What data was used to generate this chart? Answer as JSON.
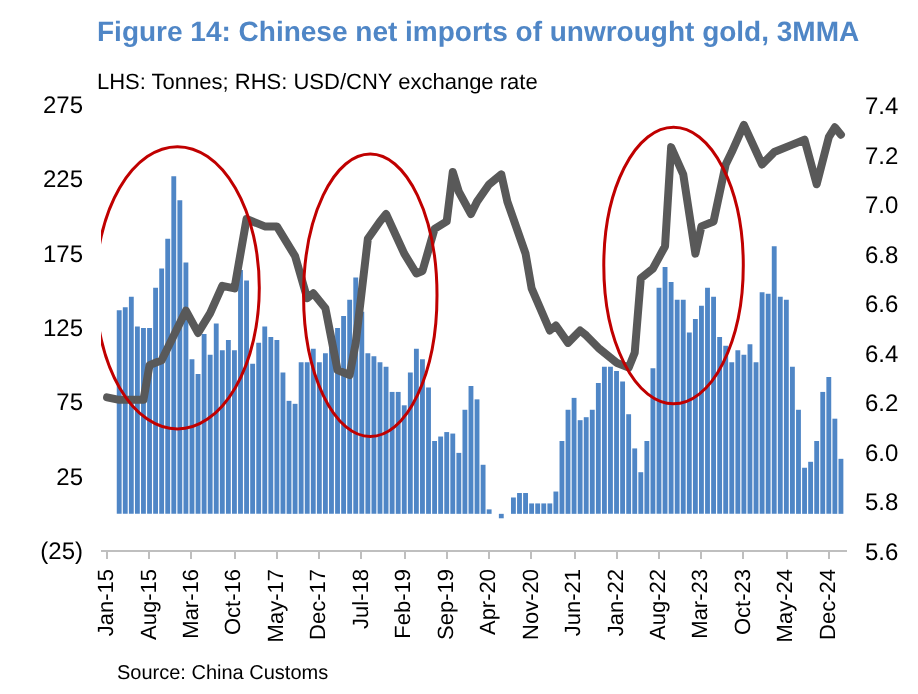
{
  "chart_data": {
    "type": "bar",
    "title": "Figure 14: Chinese net imports of unwrought gold, 3MMA",
    "subtitle": "LHS: Tonnes; RHS: USD/CNY exchange rate",
    "annotations": [
      "Source: China Customs"
    ],
    "x": [
      "2015-03",
      "2015-04",
      "2015-05",
      "2015-06",
      "2015-07",
      "2015-08",
      "2015-09",
      "2015-10",
      "2015-11",
      "2015-12",
      "2016-01",
      "2016-02",
      "2016-03",
      "2016-04",
      "2016-05",
      "2016-06",
      "2016-07",
      "2016-08",
      "2016-09",
      "2016-10",
      "2016-11",
      "2016-12",
      "2017-01",
      "2017-02",
      "2017-03",
      "2017-04",
      "2017-05",
      "2017-06",
      "2017-07",
      "2017-08",
      "2017-09",
      "2017-10",
      "2017-11",
      "2017-12",
      "2018-01",
      "2018-02",
      "2018-03",
      "2018-04",
      "2018-05",
      "2018-06",
      "2018-07",
      "2018-08",
      "2018-09",
      "2018-10",
      "2018-11",
      "2018-12",
      "2019-01",
      "2019-02",
      "2019-03",
      "2019-04",
      "2019-05",
      "2019-06",
      "2019-07",
      "2019-08",
      "2019-09",
      "2019-10",
      "2019-11",
      "2019-12",
      "2020-01",
      "2020-02",
      "2020-03",
      "2020-04",
      "2020-05",
      "2020-06",
      "2020-07",
      "2020-08",
      "2020-09",
      "2020-10",
      "2020-11",
      "2020-12",
      "2021-01",
      "2021-02",
      "2021-03",
      "2021-04",
      "2021-05",
      "2021-06",
      "2021-07",
      "2021-08",
      "2021-09",
      "2021-10",
      "2021-11",
      "2021-12",
      "2022-01",
      "2022-02",
      "2022-03",
      "2022-04",
      "2022-05",
      "2022-06",
      "2022-07",
      "2022-08",
      "2022-09",
      "2022-10",
      "2022-11",
      "2022-12",
      "2023-01",
      "2023-02",
      "2023-03",
      "2023-04",
      "2023-05",
      "2023-06",
      "2023-07",
      "2023-08",
      "2023-09",
      "2023-10",
      "2023-11",
      "2023-12",
      "2024-01",
      "2024-02",
      "2024-03",
      "2024-04",
      "2024-05",
      "2024-06",
      "2024-07",
      "2024-08",
      "2024-09",
      "2024-10",
      "2024-11",
      "2024-12",
      "2025-01",
      "2025-02"
    ],
    "series": [
      {
        "color": "#4f86c6",
        "values": [
          137,
          139,
          146,
          126,
          125,
          125,
          152,
          165,
          185,
          227,
          211,
          169,
          104,
          94,
          121,
          107,
          128,
          110,
          117,
          110,
          164,
          157,
          101,
          115,
          126,
          119,
          117,
          95,
          76,
          74,
          102,
          102,
          111,
          102,
          108,
          117,
          125,
          133,
          144,
          159,
          136,
          108,
          106,
          102,
          99,
          82,
          82,
          73,
          95,
          111,
          104,
          85,
          49,
          52,
          55,
          54,
          41,
          70,
          86,
          77,
          33,
          3,
          0,
          -3,
          0,
          11,
          14,
          14,
          7,
          7,
          7,
          7,
          15,
          49,
          70,
          78,
          63,
          65,
          70,
          88,
          99,
          99,
          96,
          89,
          67,
          44,
          28,
          49,
          98,
          152,
          166,
          156,
          144,
          144,
          122,
          131,
          140,
          152,
          146,
          119,
          113,
          102,
          110,
          107,
          114,
          102,
          149,
          148,
          180,
          146,
          144,
          99,
          70,
          31,
          35,
          49,
          82,
          92,
          64,
          37
        ]
      },
      {
        "type": "line",
        "axis": "y2",
        "color": "#595959",
        "x": [
          "2015-01",
          "2015-03",
          "2015-07",
          "2015-08",
          "2015-10",
          "2015-12",
          "2016-02",
          "2016-04",
          "2016-06",
          "2016-08",
          "2016-10",
          "2016-12",
          "2017-03",
          "2017-05",
          "2017-08",
          "2017-10",
          "2017-11",
          "2018-01",
          "2018-03",
          "2018-05",
          "2018-06",
          "2018-08",
          "2018-10",
          "2018-11",
          "2019-02",
          "2019-04",
          "2019-05",
          "2019-07",
          "2019-09",
          "2019-10",
          "2019-11",
          "2020-01",
          "2020-02",
          "2020-04",
          "2020-06",
          "2020-07",
          "2020-10",
          "2020-11",
          "2021-02",
          "2021-03",
          "2021-05",
          "2021-07",
          "2021-08",
          "2021-10",
          "2022-01",
          "2022-03",
          "2022-04",
          "2022-05",
          "2022-07",
          "2022-09",
          "2022-10",
          "2022-12",
          "2023-02",
          "2023-03",
          "2023-05",
          "2023-07",
          "2023-08",
          "2023-10",
          "2024-01",
          "2024-03",
          "2024-06",
          "2024-08",
          "2024-10",
          "2024-12",
          "2025-01",
          "2025-02"
        ],
        "values": [
          6.22,
          6.21,
          6.21,
          6.35,
          6.37,
          6.47,
          6.57,
          6.48,
          6.56,
          6.67,
          6.66,
          6.94,
          6.91,
          6.91,
          6.79,
          6.62,
          6.64,
          6.58,
          6.33,
          6.31,
          6.44,
          6.86,
          6.93,
          6.96,
          6.8,
          6.72,
          6.73,
          6.9,
          6.93,
          7.13,
          7.05,
          6.96,
          7.01,
          7.08,
          7.12,
          7.01,
          6.8,
          6.66,
          6.49,
          6.51,
          6.44,
          6.49,
          6.47,
          6.42,
          6.36,
          6.34,
          6.4,
          6.7,
          6.74,
          6.83,
          7.23,
          7.12,
          6.8,
          6.91,
          6.93,
          7.16,
          7.21,
          7.32,
          7.16,
          7.21,
          7.24,
          7.26,
          7.08,
          7.27,
          7.31,
          7.28
        ]
      }
    ],
    "xlim": [
      "2014-12",
      "2025-03"
    ],
    "xticks": [
      {
        "value": "2015-01",
        "label": "Jan-15"
      },
      {
        "value": "2015-08",
        "label": "Aug-15"
      },
      {
        "value": "2016-03",
        "label": "Mar-16"
      },
      {
        "value": "2016-10",
        "label": "Oct-16"
      },
      {
        "value": "2017-05",
        "label": "May-17"
      },
      {
        "value": "2017-12",
        "label": "Dec-17"
      },
      {
        "value": "2018-07",
        "label": "Jul-18"
      },
      {
        "value": "2019-02",
        "label": "Feb-19"
      },
      {
        "value": "2019-09",
        "label": "Sep-19"
      },
      {
        "value": "2020-04",
        "label": "Apr-20"
      },
      {
        "value": "2020-11",
        "label": "Nov-20"
      },
      {
        "value": "2021-06",
        "label": "Jun-21"
      },
      {
        "value": "2022-01",
        "label": "Jan-22"
      },
      {
        "value": "2022-08",
        "label": "Aug-22"
      },
      {
        "value": "2023-03",
        "label": "Mar-23"
      },
      {
        "value": "2023-10",
        "label": "Oct-23"
      },
      {
        "value": "2024-05",
        "label": "May-24"
      },
      {
        "value": "2024-12",
        "label": "Dec-24"
      }
    ],
    "ylim": [
      -25,
      275
    ],
    "yticks": [
      {
        "value": -25,
        "label": "(25)"
      },
      25,
      75,
      125,
      175,
      225,
      275
    ],
    "y2lim": [
      5.6,
      7.4
    ],
    "y2ticks": [
      {
        "value": 5.6,
        "label": "5.6"
      },
      {
        "value": 5.8,
        "label": "5.8"
      },
      {
        "value": 6.0,
        "label": "6.0"
      },
      {
        "value": 6.2,
        "label": "6.2"
      },
      {
        "value": 6.4,
        "label": "6.4"
      },
      {
        "value": 6.6,
        "label": "6.6"
      },
      {
        "value": 6.8,
        "label": "6.8"
      },
      {
        "value": 7.0,
        "label": "7.0"
      },
      {
        "value": 7.2,
        "label": "7.2"
      },
      {
        "value": 7.4,
        "label": "7.4"
      }
    ],
    "grid": false
  }
}
